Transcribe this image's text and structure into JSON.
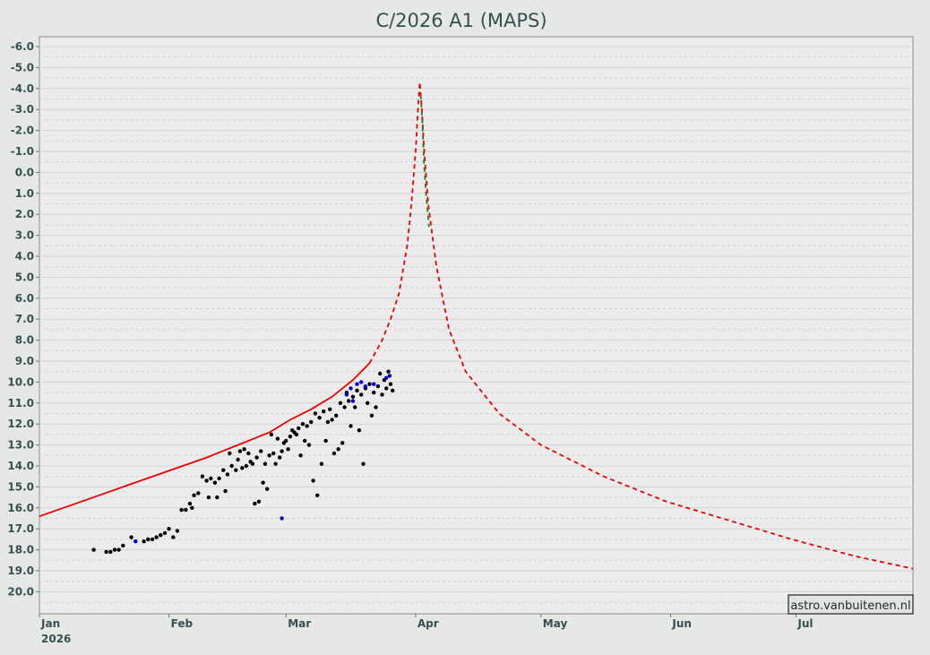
{
  "chart_data": {
    "type": "scatter",
    "title": "C/2026 A1 (MAPS)",
    "xlabel": "",
    "ylabel": "",
    "y_inverted": true,
    "ylim": [
      -6.0,
      21.0
    ],
    "y_ticks": [
      "-6.0",
      "-5.0",
      "-4.0",
      "-3.0",
      "-2.0",
      "-1.0",
      "0.0",
      "1.0",
      "2.0",
      "3.0",
      "4.0",
      "5.0",
      "6.0",
      "7.0",
      "8.0",
      "9.0",
      "10.0",
      "11.0",
      "12.0",
      "13.0",
      "14.0",
      "15.0",
      "16.0",
      "17.0",
      "18.0",
      "19.0",
      "20.0"
    ],
    "x_unit": "days since 2026-01-01",
    "xlim": [
      0,
      209
    ],
    "x_ticks": [
      {
        "day": 0,
        "label": "Jan",
        "sublabel": "2026"
      },
      {
        "day": 31,
        "label": "Feb"
      },
      {
        "day": 59,
        "label": "Mar"
      },
      {
        "day": 90,
        "label": "Apr"
      },
      {
        "day": 120,
        "label": "May"
      },
      {
        "day": 151,
        "label": "Jun"
      },
      {
        "day": 181,
        "label": "Jul"
      }
    ],
    "grid": true,
    "colors": {
      "background": "#e6e8e6",
      "plot_area": "#ececec",
      "grid": "#d2d2d2",
      "model_curve": "#ee0000",
      "green_segment": "#2a7a2a",
      "observations": "#000000",
      "observations_blue": "#0000dd",
      "axis_text": "#355050"
    },
    "series": [
      {
        "name": "model (fitted)",
        "kind": "line",
        "style": "solid",
        "color": "#ee0000",
        "x": [
          0,
          10,
          20,
          30,
          40,
          50,
          55,
          60,
          65,
          70,
          75,
          79
        ],
        "y": [
          16.4,
          15.7,
          15.0,
          14.3,
          13.6,
          12.8,
          12.4,
          11.8,
          11.3,
          10.7,
          9.9,
          9.1
        ]
      },
      {
        "name": "model (prediction)",
        "kind": "line",
        "style": "dashed",
        "color": "#ee0000",
        "x": [
          79,
          82,
          84,
          86,
          88,
          89,
          90,
          90.5,
          91,
          91.5,
          92,
          93,
          95,
          98,
          102,
          110,
          120,
          135,
          150,
          165,
          180,
          195,
          209
        ],
        "y": [
          9.1,
          8.0,
          7.0,
          5.8,
          3.5,
          1.5,
          -1.0,
          -2.8,
          -4.3,
          -3.0,
          -1.2,
          1.5,
          4.5,
          7.5,
          9.5,
          11.5,
          13.0,
          14.5,
          15.7,
          16.6,
          17.5,
          18.3,
          18.9
        ]
      },
      {
        "name": "perihelion segment",
        "kind": "line",
        "style": "dashed",
        "color": "#2a7a2a",
        "x": [
          91.2,
          91.6,
          92.0,
          92.5,
          93.2
        ],
        "y": [
          -3.7,
          -2.5,
          -0.5,
          1.0,
          2.6
        ]
      },
      {
        "name": "observations",
        "kind": "scatter",
        "color": "#000000",
        "points": [
          [
            13,
            18.0
          ],
          [
            16,
            18.1
          ],
          [
            17,
            18.1
          ],
          [
            18,
            18.0
          ],
          [
            19,
            18.0
          ],
          [
            20,
            17.8
          ],
          [
            22,
            17.4
          ],
          [
            25,
            17.6
          ],
          [
            26,
            17.5
          ],
          [
            27,
            17.5
          ],
          [
            28,
            17.4
          ],
          [
            29,
            17.3
          ],
          [
            30,
            17.2
          ],
          [
            31,
            17.0
          ],
          [
            32,
            17.4
          ],
          [
            33,
            17.1
          ],
          [
            34,
            16.1
          ],
          [
            35,
            16.1
          ],
          [
            36,
            15.8
          ],
          [
            36.5,
            16.0
          ],
          [
            37,
            15.4
          ],
          [
            38,
            15.3
          ],
          [
            39,
            14.5
          ],
          [
            40,
            14.7
          ],
          [
            40.5,
            15.5
          ],
          [
            41,
            14.6
          ],
          [
            42,
            14.8
          ],
          [
            42.5,
            15.5
          ],
          [
            43,
            14.6
          ],
          [
            44,
            14.2
          ],
          [
            44.5,
            15.2
          ],
          [
            45,
            14.4
          ],
          [
            45.5,
            13.4
          ],
          [
            46,
            14.0
          ],
          [
            47,
            14.2
          ],
          [
            47.5,
            13.7
          ],
          [
            48,
            13.3
          ],
          [
            48.5,
            14.1
          ],
          [
            49,
            13.2
          ],
          [
            49.5,
            14.0
          ],
          [
            50,
            13.4
          ],
          [
            50.5,
            13.8
          ],
          [
            51,
            13.9
          ],
          [
            51.5,
            15.8
          ],
          [
            52,
            13.6
          ],
          [
            52.5,
            15.7
          ],
          [
            53,
            13.3
          ],
          [
            53.5,
            14.8
          ],
          [
            54,
            13.9
          ],
          [
            54.5,
            15.1
          ],
          [
            55,
            13.5
          ],
          [
            55.5,
            12.5
          ],
          [
            56,
            13.4
          ],
          [
            56.5,
            13.9
          ],
          [
            57,
            12.7
          ],
          [
            57.5,
            13.6
          ],
          [
            58,
            13.3
          ],
          [
            58.5,
            12.9
          ],
          [
            59,
            12.8
          ],
          [
            59.5,
            13.2
          ],
          [
            60,
            12.6
          ],
          [
            60.5,
            12.3
          ],
          [
            61,
            12.4
          ],
          [
            61.5,
            12.5
          ],
          [
            62,
            12.2
          ],
          [
            62.5,
            13.5
          ],
          [
            63,
            12.0
          ],
          [
            63.5,
            12.8
          ],
          [
            64,
            12.1
          ],
          [
            64.5,
            13.0
          ],
          [
            65,
            11.9
          ],
          [
            65.5,
            14.7
          ],
          [
            66,
            11.5
          ],
          [
            66.5,
            15.4
          ],
          [
            67,
            11.7
          ],
          [
            67.5,
            13.9
          ],
          [
            68,
            11.4
          ],
          [
            68.5,
            12.8
          ],
          [
            69,
            11.9
          ],
          [
            69.5,
            11.3
          ],
          [
            70,
            11.8
          ],
          [
            70.5,
            13.4
          ],
          [
            71,
            11.6
          ],
          [
            71.5,
            13.2
          ],
          [
            72,
            11.0
          ],
          [
            72.5,
            12.9
          ],
          [
            73,
            11.2
          ],
          [
            73.5,
            10.5
          ],
          [
            74,
            10.9
          ],
          [
            74.5,
            12.1
          ],
          [
            75,
            10.7
          ],
          [
            75.5,
            11.2
          ],
          [
            76,
            10.4
          ],
          [
            76.5,
            12.3
          ],
          [
            77,
            10.6
          ],
          [
            77.5,
            13.9
          ],
          [
            78,
            10.3
          ],
          [
            78.5,
            11.0
          ],
          [
            79,
            10.1
          ],
          [
            79.5,
            11.6
          ],
          [
            80,
            10.5
          ],
          [
            80.5,
            11.2
          ],
          [
            81,
            10.2
          ],
          [
            81.5,
            9.6
          ],
          [
            82,
            10.6
          ],
          [
            82.5,
            9.9
          ],
          [
            83,
            10.3
          ],
          [
            83.5,
            9.5
          ],
          [
            84,
            10.1
          ],
          [
            84.5,
            10.4
          ]
        ]
      },
      {
        "name": "observations (other)",
        "kind": "scatter",
        "color": "#0000dd",
        "points": [
          [
            23,
            17.6
          ],
          [
            58,
            16.5
          ],
          [
            73.5,
            10.6
          ],
          [
            74.5,
            10.3
          ],
          [
            75,
            10.9
          ],
          [
            76,
            10.1
          ],
          [
            77,
            10.0
          ],
          [
            78,
            10.2
          ],
          [
            80,
            10.1
          ],
          [
            83,
            9.8
          ],
          [
            83.8,
            9.7
          ]
        ]
      }
    ],
    "credit": "astro.vanbuitenen.nl"
  }
}
